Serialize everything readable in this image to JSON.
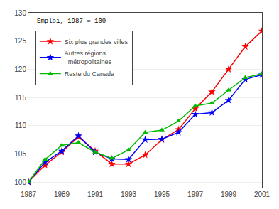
{
  "chart_data": {
    "type": "line",
    "annotation": "Emploi, 1987 = 100",
    "x": [
      1987,
      1988,
      1989,
      1990,
      1991,
      1992,
      1993,
      1994,
      1995,
      1996,
      1997,
      1998,
      1999,
      2000,
      2001
    ],
    "series": [
      {
        "name": "Six plus grandes villes",
        "color": "#ff0000",
        "marker": "star",
        "values": [
          100,
          103,
          105.3,
          108,
          105.5,
          103.2,
          103.2,
          104.8,
          107.5,
          109.3,
          113,
          116,
          120,
          124,
          126.8
        ]
      },
      {
        "name": "Autres régions\n  métropolitaines",
        "color": "#0000ff",
        "marker": "star",
        "values": [
          100,
          103.5,
          105.5,
          108.2,
          105.3,
          104.1,
          104.0,
          107.5,
          107.6,
          108.8,
          112,
          112.3,
          114.5,
          118.2,
          119
        ]
      },
      {
        "name": "Reste du Canada",
        "color": "#00bb00",
        "marker": "triangle-up",
        "values": [
          100,
          104,
          106.5,
          107.0,
          105.3,
          104.2,
          105.7,
          108.8,
          109.2,
          110.8,
          113.5,
          114.0,
          116.3,
          118.5,
          119.2
        ]
      }
    ],
    "xlim": [
      1987,
      2001
    ],
    "xticks": [
      1987,
      1989,
      1991,
      1993,
      1995,
      1997,
      1999,
      2001
    ],
    "ylim": [
      99,
      130
    ],
    "yticks": [
      100,
      105,
      110,
      115,
      120,
      125,
      130
    ],
    "grid": "y",
    "legend": "upper left"
  }
}
